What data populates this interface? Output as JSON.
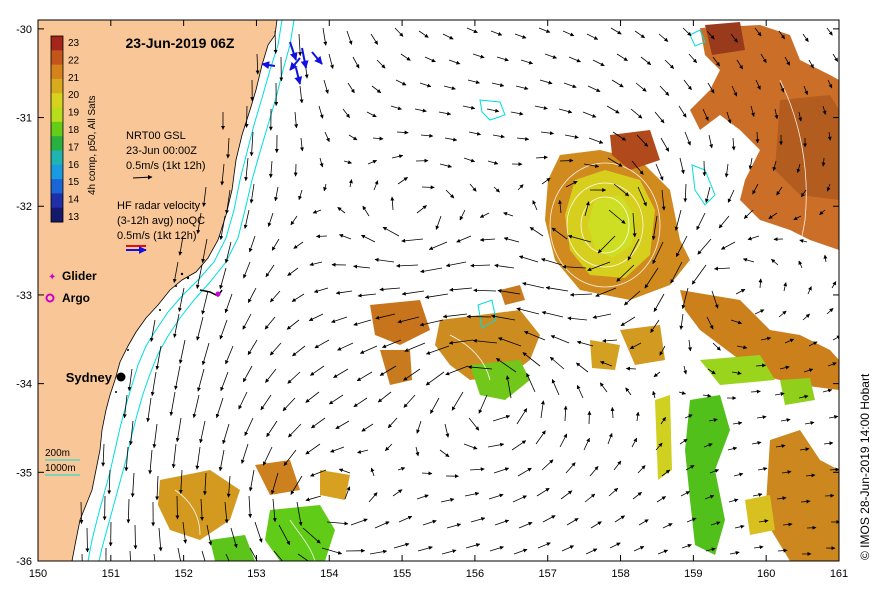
{
  "title": "23-Jun-2019 06Z",
  "colorbar": {
    "label": "4h comp, p50, All Sats",
    "ticks": [
      "23",
      "22",
      "21",
      "20",
      "19",
      "18",
      "17",
      "16",
      "15",
      "14",
      "13"
    ],
    "colors": [
      "#a3251c",
      "#c2551a",
      "#d4821c",
      "#d8ab1e",
      "#d7d21e",
      "#b8dd1c",
      "#66cc1a",
      "#28b040",
      "#1fb3b2",
      "#1a9ae0",
      "#1a66d8",
      "#1f2fa8",
      "#14196b"
    ]
  },
  "legends": {
    "nrt_label_1": "NRT00 GSL",
    "nrt_label_2": "23-Jun 00:00Z",
    "nrt_label_3": "0.5m/s (1kt 12h)",
    "hf_label_1": "HF radar velocity",
    "hf_label_2": "(3-12h avg) noQC",
    "hf_label_3": "0.5m/s (1kt 12h)",
    "glider": "Glider",
    "argo": "Argo",
    "city": "Sydney",
    "contour_200": "200m",
    "contour_1000": "1000m"
  },
  "axes": {
    "x_ticks": [
      "150",
      "151",
      "152",
      "153",
      "154",
      "155",
      "156",
      "157",
      "158",
      "159",
      "160",
      "161"
    ],
    "y_ticks": [
      "-30",
      "-31",
      "-32",
      "-33",
      "-34",
      "-35",
      "-36"
    ],
    "x_range": [
      150,
      161
    ],
    "y_range": [
      -36,
      -29.9
    ]
  },
  "credit": "© IMOS 28-Jun-2019 14:00 Hobart",
  "colors": {
    "land": "#f9c797",
    "coast": "#000000",
    "isobath": "#00dddd",
    "glider": "#cc00cc",
    "argo": "#cc00cc"
  }
}
